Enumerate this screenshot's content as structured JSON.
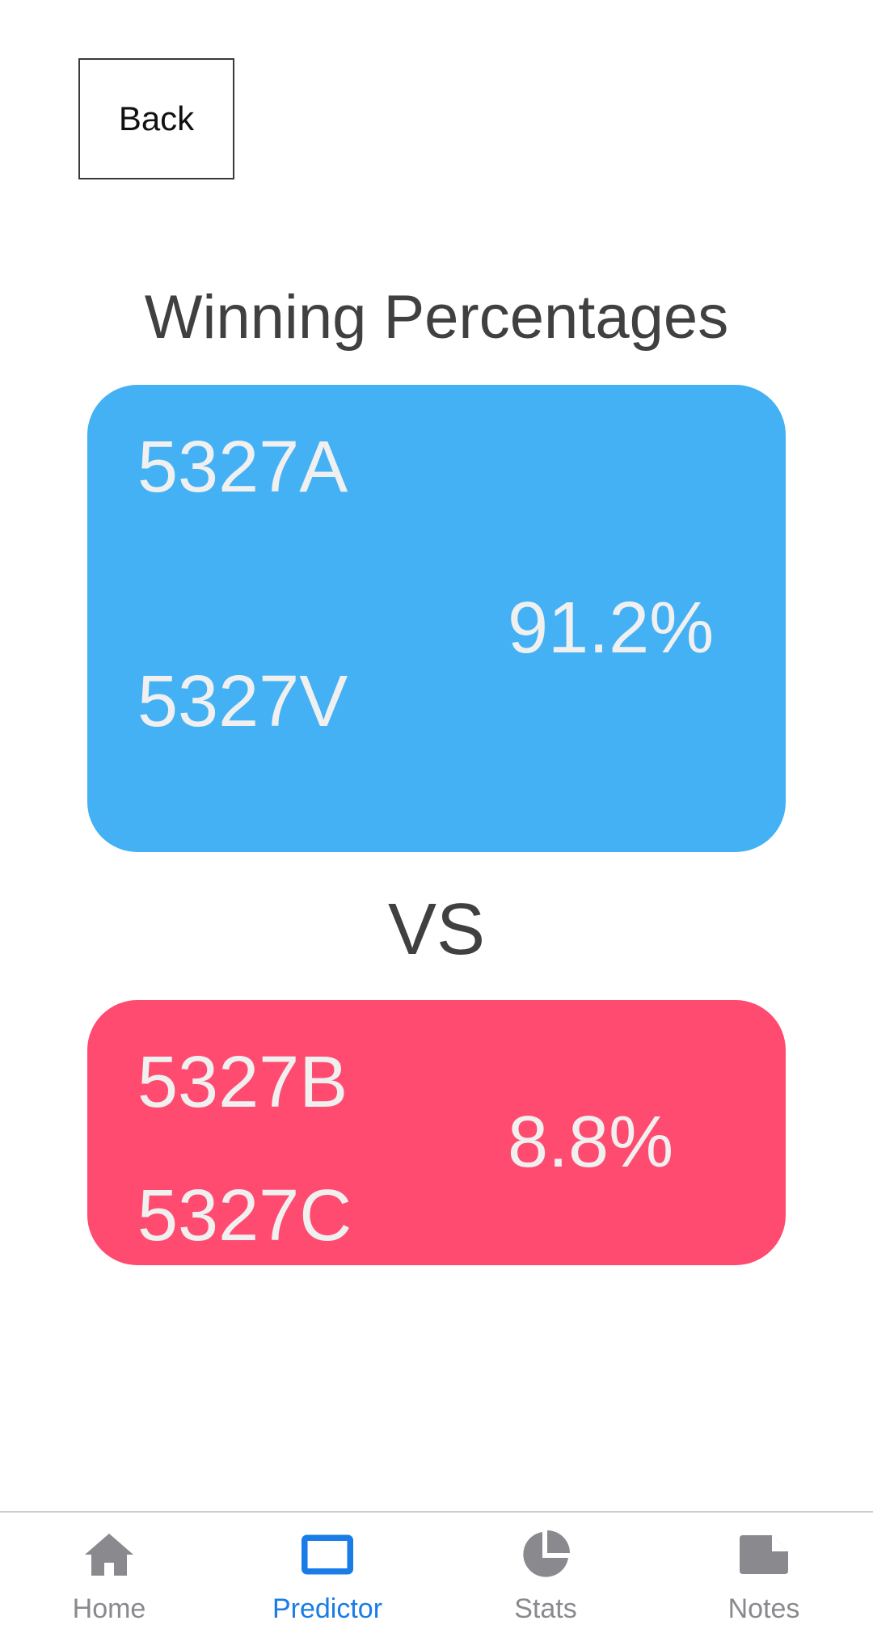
{
  "header": {
    "back_label": "Back"
  },
  "main": {
    "title": "Winning Percentages",
    "vs_label": "VS",
    "alliance_blue": {
      "color": "#44b1f4",
      "team_1": "5327A",
      "team_2": "5327V",
      "percentage": "91.2%"
    },
    "alliance_red": {
      "color": "#ff4b70",
      "team_1": "5327B",
      "team_2": "5327C",
      "percentage": "8.8%"
    }
  },
  "tabbar": {
    "active_color": "#1a7ce6",
    "inactive_color": "#8a8a8e",
    "items": [
      {
        "label": "Home",
        "icon": "home-icon"
      },
      {
        "label": "Predictor",
        "icon": "predictor-icon"
      },
      {
        "label": "Stats",
        "icon": "stats-pie-icon"
      },
      {
        "label": "Notes",
        "icon": "notes-icon"
      }
    ],
    "active_index": 1
  }
}
